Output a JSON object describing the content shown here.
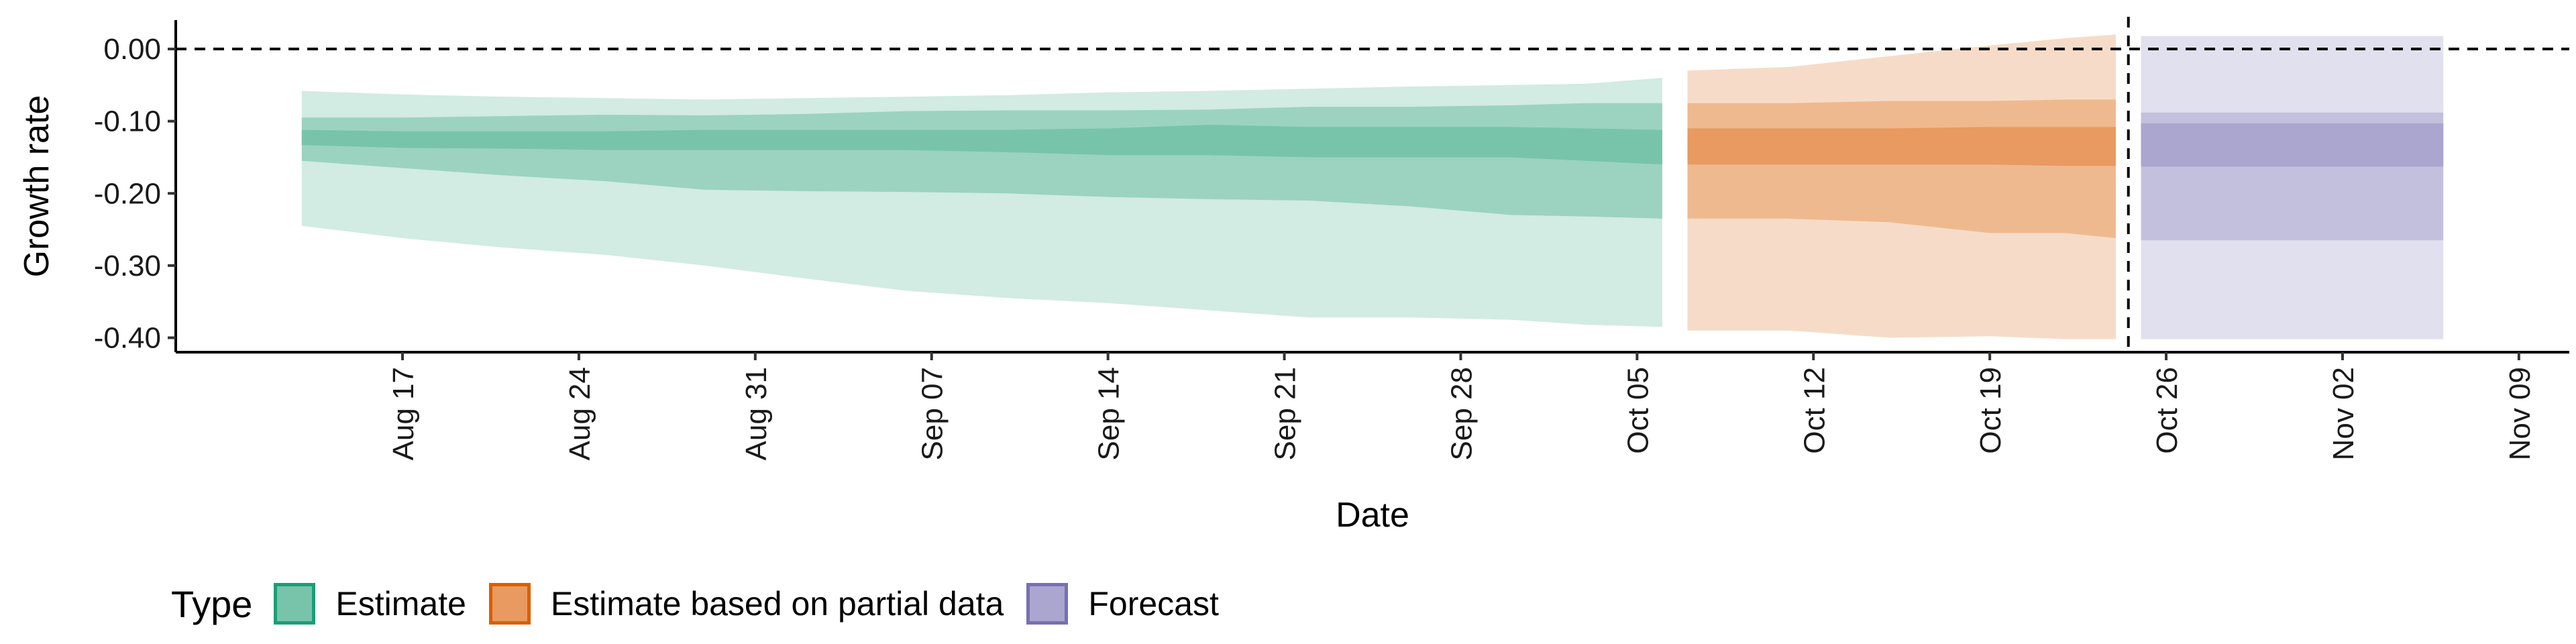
{
  "chart_data": {
    "type": "area",
    "xlabel": "Date",
    "ylabel": "Growth rate",
    "x_ticks": [
      "Aug 17",
      "Aug 24",
      "Aug 31",
      "Sep 07",
      "Sep 14",
      "Sep 21",
      "Sep 28",
      "Oct 05",
      "Oct 12",
      "Oct 19",
      "Oct 26",
      "Nov 02",
      "Nov 09"
    ],
    "x_tick_dates": [
      "2021-08-17",
      "2021-08-24",
      "2021-08-31",
      "2021-09-07",
      "2021-09-14",
      "2021-09-21",
      "2021-09-28",
      "2021-10-05",
      "2021-10-12",
      "2021-10-19",
      "2021-10-26",
      "2021-11-02",
      "2021-11-09"
    ],
    "y_ticks": [
      0.0,
      -0.1,
      -0.2,
      -0.3,
      -0.4
    ],
    "y_tick_labels": [
      "0.00",
      "-0.10",
      "-0.20",
      "-0.30",
      "-0.40"
    ],
    "xlim": [
      "2021-08-08",
      "2021-11-11"
    ],
    "ylim": [
      -0.42,
      0.04
    ],
    "reference_line_y": 0.0,
    "forecast_date": "2021-10-24",
    "legend": {
      "title": "Type",
      "position": "bottom",
      "items": [
        {
          "label": "Estimate",
          "fill": "#78c4ab",
          "border": "#1b9e77"
        },
        {
          "label": "Estimate based on partial data",
          "fill": "#e89a60",
          "border": "#d95f02"
        },
        {
          "label": "Forecast",
          "fill": "#aaa6cf",
          "border": "#7570b3"
        }
      ]
    },
    "series": [
      {
        "name": "Estimate",
        "colors": {
          "outer": "#d2ebe3",
          "mid": "#9bd3c0",
          "inner": "#78c4ab"
        },
        "points": [
          {
            "x": "2021-08-13",
            "l90": -0.245,
            "u90": -0.058,
            "l50": -0.155,
            "u50": -0.095,
            "l20": -0.133,
            "u20": -0.112
          },
          {
            "x": "2021-08-17",
            "l90": -0.262,
            "u90": -0.063,
            "l50": -0.165,
            "u50": -0.095,
            "l20": -0.137,
            "u20": -0.114
          },
          {
            "x": "2021-08-21",
            "l90": -0.275,
            "u90": -0.066,
            "l50": -0.175,
            "u50": -0.093,
            "l20": -0.138,
            "u20": -0.114
          },
          {
            "x": "2021-08-25",
            "l90": -0.285,
            "u90": -0.068,
            "l50": -0.183,
            "u50": -0.091,
            "l20": -0.14,
            "u20": -0.114
          },
          {
            "x": "2021-08-29",
            "l90": -0.3,
            "u90": -0.07,
            "l50": -0.195,
            "u50": -0.092,
            "l20": -0.14,
            "u20": -0.112
          },
          {
            "x": "2021-09-02",
            "l90": -0.318,
            "u90": -0.068,
            "l50": -0.197,
            "u50": -0.09,
            "l20": -0.14,
            "u20": -0.112
          },
          {
            "x": "2021-09-06",
            "l90": -0.335,
            "u90": -0.066,
            "l50": -0.198,
            "u50": -0.086,
            "l20": -0.14,
            "u20": -0.112
          },
          {
            "x": "2021-09-10",
            "l90": -0.345,
            "u90": -0.064,
            "l50": -0.2,
            "u50": -0.085,
            "l20": -0.143,
            "u20": -0.112
          },
          {
            "x": "2021-09-14",
            "l90": -0.352,
            "u90": -0.06,
            "l50": -0.205,
            "u50": -0.085,
            "l20": -0.147,
            "u20": -0.11
          },
          {
            "x": "2021-09-18",
            "l90": -0.362,
            "u90": -0.058,
            "l50": -0.208,
            "u50": -0.084,
            "l20": -0.147,
            "u20": -0.105
          },
          {
            "x": "2021-09-22",
            "l90": -0.372,
            "u90": -0.055,
            "l50": -0.21,
            "u50": -0.08,
            "l20": -0.15,
            "u20": -0.108
          },
          {
            "x": "2021-09-26",
            "l90": -0.372,
            "u90": -0.052,
            "l50": -0.218,
            "u50": -0.08,
            "l20": -0.15,
            "u20": -0.108
          },
          {
            "x": "2021-09-30",
            "l90": -0.375,
            "u90": -0.05,
            "l50": -0.23,
            "u50": -0.078,
            "l20": -0.15,
            "u20": -0.108
          },
          {
            "x": "2021-10-03",
            "l90": -0.382,
            "u90": -0.048,
            "l50": -0.232,
            "u50": -0.075,
            "l20": -0.155,
            "u20": -0.11
          },
          {
            "x": "2021-10-06",
            "l90": -0.385,
            "u90": -0.04,
            "l50": -0.235,
            "u50": -0.075,
            "l20": -0.16,
            "u20": -0.112
          }
        ]
      },
      {
        "name": "Estimate based on partial data",
        "colors": {
          "outer": "#f6dcc8",
          "mid": "#efb98f",
          "inner": "#e89a60"
        },
        "points": [
          {
            "x": "2021-10-07",
            "l90": -0.39,
            "u90": -0.03,
            "l50": -0.235,
            "u50": -0.075,
            "l20": -0.16,
            "u20": -0.11
          },
          {
            "x": "2021-10-11",
            "l90": -0.39,
            "u90": -0.025,
            "l50": -0.235,
            "u50": -0.075,
            "l20": -0.16,
            "u20": -0.11
          },
          {
            "x": "2021-10-15",
            "l90": -0.4,
            "u90": -0.01,
            "l50": -0.24,
            "u50": -0.072,
            "l20": -0.16,
            "u20": -0.11
          },
          {
            "x": "2021-10-19",
            "l90": -0.398,
            "u90": 0.005,
            "l50": -0.255,
            "u50": -0.072,
            "l20": -0.16,
            "u20": -0.108
          },
          {
            "x": "2021-10-22",
            "l90": -0.402,
            "u90": 0.015,
            "l50": -0.255,
            "u50": -0.07,
            "l20": -0.162,
            "u20": -0.108
          },
          {
            "x": "2021-10-24",
            "l90": -0.402,
            "u90": 0.02,
            "l50": -0.262,
            "u50": -0.07,
            "l20": -0.162,
            "u20": -0.108
          }
        ]
      },
      {
        "name": "Forecast",
        "colors": {
          "outer": "#e1e0ee",
          "mid": "#c3c0dd",
          "inner": "#aaa6cf"
        },
        "points": [
          {
            "x": "2021-10-25",
            "l90": -0.402,
            "u90": 0.018,
            "l50": -0.265,
            "u50": -0.088,
            "l20": -0.163,
            "u20": -0.103
          },
          {
            "x": "2021-11-06",
            "l90": -0.402,
            "u90": 0.018,
            "l50": -0.265,
            "u50": -0.088,
            "l20": -0.163,
            "u20": -0.103
          }
        ]
      }
    ]
  }
}
